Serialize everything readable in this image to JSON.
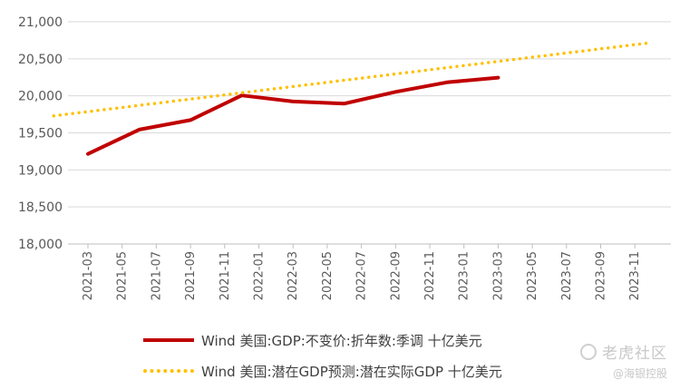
{
  "chart_data": {
    "type": "line",
    "x": [
      "2021-03",
      "2021-05",
      "2021-07",
      "2021-09",
      "2021-11",
      "2022-01",
      "2022-03",
      "2022-05",
      "2022-07",
      "2022-09",
      "2022-11",
      "2023-01",
      "2023-03",
      "2023-05",
      "2023-07",
      "2023-09",
      "2023-11"
    ],
    "ylim": [
      18000,
      21000
    ],
    "yticks": [
      "18,000",
      "18,500",
      "19,000",
      "19,500",
      "20,000",
      "20,500",
      "21,000"
    ],
    "grid": true,
    "legend_position": "bottom",
    "series": [
      {
        "name": "Wind 美国:GDP:不变价:折年数:季调 十亿美元",
        "color": "#c00000",
        "style": "solid",
        "points": [
          {
            "x": "2021-03",
            "y": 19216
          },
          {
            "x": "2021-06",
            "y": 19544
          },
          {
            "x": "2021-09",
            "y": 19673
          },
          {
            "x": "2021-12",
            "y": 20006
          },
          {
            "x": "2022-03",
            "y": 19924
          },
          {
            "x": "2022-06",
            "y": 19896
          },
          {
            "x": "2022-09",
            "y": 20054
          },
          {
            "x": "2022-12",
            "y": 20182
          },
          {
            "x": "2023-03",
            "y": 20246
          }
        ]
      },
      {
        "name": "Wind 美国:潜在GDP预测:潜在实际GDP 十亿美元",
        "color": "#ffc000",
        "style": "dotted",
        "points": [
          {
            "x": "2021-01",
            "y": 19730
          },
          {
            "x": "2023-12",
            "y": 20720
          }
        ]
      }
    ]
  },
  "watermark": {
    "main": "老虎社区",
    "sub": "@海银控股"
  }
}
